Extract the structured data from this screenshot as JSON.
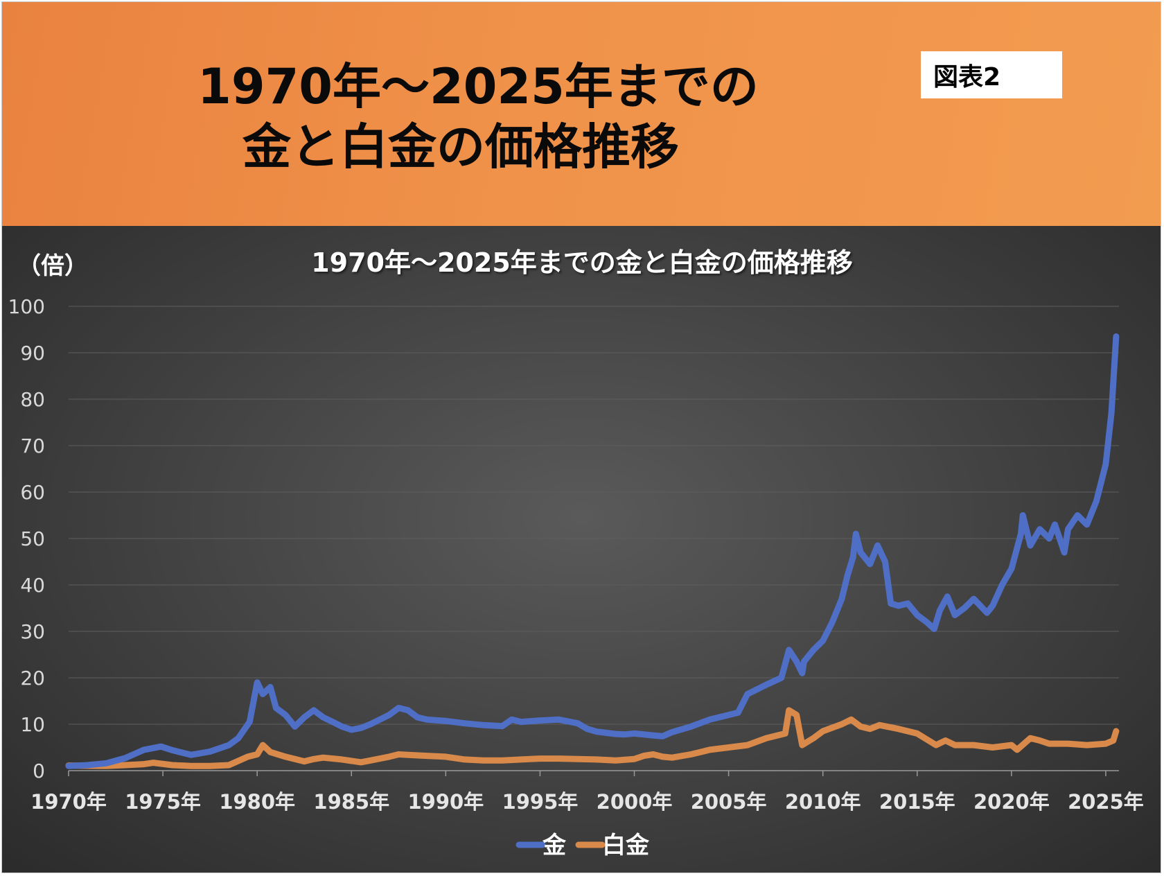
{
  "header": {
    "title_line1": "1970年～2025年までの",
    "title_line2": "金と白金の価格推移",
    "figure_label": "図表2"
  },
  "chart_data": {
    "type": "line",
    "title": "1970年～2025年までの金と白金の価格推移",
    "ylabel": "（倍）",
    "xlabel": "",
    "ylim": [
      0,
      100
    ],
    "xlim": [
      1970,
      2025.7
    ],
    "yticks": [
      "0",
      "10",
      "20",
      "30",
      "40",
      "50",
      "60",
      "70",
      "80",
      "90",
      "100"
    ],
    "xticks": [
      "1970年",
      "1975年",
      "1980年",
      "1985年",
      "1990年",
      "1995年",
      "2000年",
      "2005年",
      "2010年",
      "2015年",
      "2020年",
      "2025年"
    ],
    "grid": true,
    "legend_position": "bottom",
    "series": [
      {
        "name": "金",
        "color": "#4f6fc6",
        "x": [
          1970,
          1971,
          1972,
          1973,
          1974,
          1974.9,
          1975.5,
          1976.5,
          1977.5,
          1978.5,
          1979,
          1979.6,
          1980.0,
          1980.3,
          1980.7,
          1981.0,
          1981.5,
          1982.0,
          1982.5,
          1983.0,
          1983.5,
          1984.0,
          1984.5,
          1985.0,
          1985.5,
          1986.0,
          1987.0,
          1987.5,
          1988.0,
          1988.5,
          1989.0,
          1990.0,
          1991.0,
          1992.0,
          1993.0,
          1993.5,
          1994.0,
          1995.0,
          1996.0,
          1997.0,
          1997.5,
          1998.0,
          1999.0,
          1999.5,
          2000.0,
          2001.0,
          2001.5,
          2002.0,
          2003.0,
          2004.0,
          2005.0,
          2005.5,
          2006.0,
          2006.5,
          2007.0,
          2007.8,
          2008.2,
          2008.6,
          2008.9,
          2009.0,
          2009.5,
          2010.0,
          2010.5,
          2011.0,
          2011.3,
          2011.6,
          2011.75,
          2012.0,
          2012.5,
          2012.9,
          2013.3,
          2013.6,
          2014.0,
          2014.5,
          2015.0,
          2015.5,
          2015.9,
          2016.2,
          2016.6,
          2017.0,
          2017.5,
          2018.0,
          2018.7,
          2019.0,
          2019.5,
          2020.0,
          2020.5,
          2020.6,
          2021.0,
          2021.5,
          2022.0,
          2022.3,
          2022.8,
          2023.0,
          2023.5,
          2024.0,
          2024.5,
          2025.0,
          2025.3,
          2025.55
        ],
        "values": [
          1.0,
          1.2,
          1.6,
          2.7,
          4.5,
          5.2,
          4.4,
          3.4,
          4.1,
          5.5,
          7.0,
          10.5,
          19.0,
          16.5,
          18.0,
          13.5,
          12.0,
          9.5,
          11.5,
          13.0,
          11.5,
          10.5,
          9.5,
          8.8,
          9.2,
          10.0,
          12.0,
          13.5,
          13.0,
          11.5,
          11.0,
          10.7,
          10.2,
          9.8,
          9.6,
          11.0,
          10.5,
          10.8,
          11.0,
          10.2,
          9.0,
          8.4,
          7.9,
          7.8,
          8.0,
          7.6,
          7.4,
          8.3,
          9.5,
          11.0,
          12.0,
          12.5,
          16.5,
          17.5,
          18.5,
          20.0,
          26.0,
          23.5,
          21.0,
          23.5,
          26.0,
          28.0,
          32.0,
          37.0,
          42.0,
          46.0,
          51.0,
          47.0,
          44.5,
          48.5,
          45.0,
          36.0,
          35.5,
          36.0,
          33.5,
          32.0,
          30.5,
          34.5,
          37.5,
          33.5,
          35.0,
          37.0,
          34.0,
          35.5,
          40.0,
          43.5,
          51.0,
          55.0,
          48.5,
          52.0,
          50.0,
          53.0,
          47.0,
          52.0,
          55.0,
          53.0,
          58.0,
          66.0,
          77.0,
          93.5
        ]
      },
      {
        "name": "白金",
        "color": "#d98a4a",
        "x": [
          1970,
          1972,
          1973,
          1974,
          1974.5,
          1975.5,
          1976.5,
          1977.5,
          1978.5,
          1979.5,
          1980.0,
          1980.3,
          1980.7,
          1981.5,
          1982.5,
          1983.0,
          1983.5,
          1984.5,
          1985.5,
          1986.0,
          1987.0,
          1987.5,
          1988.0,
          1989.0,
          1990.0,
          1991.0,
          1992.0,
          1993.0,
          1994.0,
          1995.0,
          1996.0,
          1997.0,
          1998.0,
          1999.0,
          2000.0,
          2000.5,
          2001.0,
          2001.5,
          2002.0,
          2003.0,
          2004.0,
          2005.0,
          2006.0,
          2007.0,
          2008.0,
          2008.2,
          2008.6,
          2008.9,
          2009.5,
          2010.0,
          2011.0,
          2011.5,
          2012.0,
          2012.5,
          2013.0,
          2014.0,
          2015.0,
          2016.0,
          2016.5,
          2017.0,
          2018.0,
          2019.0,
          2020.0,
          2020.3,
          2021.0,
          2021.5,
          2022.0,
          2023.0,
          2024.0,
          2025.0,
          2025.4,
          2025.55
        ],
        "values": [
          1.1,
          1.0,
          1.2,
          1.4,
          1.7,
          1.2,
          1.0,
          1.0,
          1.2,
          3.0,
          3.5,
          5.5,
          4.0,
          3.0,
          2.0,
          2.5,
          2.8,
          2.4,
          1.8,
          2.2,
          3.0,
          3.5,
          3.4,
          3.2,
          3.0,
          2.4,
          2.2,
          2.2,
          2.4,
          2.6,
          2.6,
          2.5,
          2.4,
          2.2,
          2.5,
          3.2,
          3.5,
          3.0,
          2.8,
          3.5,
          4.5,
          5.0,
          5.5,
          7.0,
          8.0,
          13.0,
          12.0,
          5.5,
          7.0,
          8.5,
          10.0,
          11.0,
          9.5,
          9.0,
          9.8,
          9.0,
          8.0,
          5.5,
          6.5,
          5.5,
          5.5,
          5.0,
          5.5,
          4.5,
          7.0,
          6.5,
          5.8,
          5.8,
          5.5,
          5.8,
          6.5,
          8.5
        ]
      }
    ]
  }
}
